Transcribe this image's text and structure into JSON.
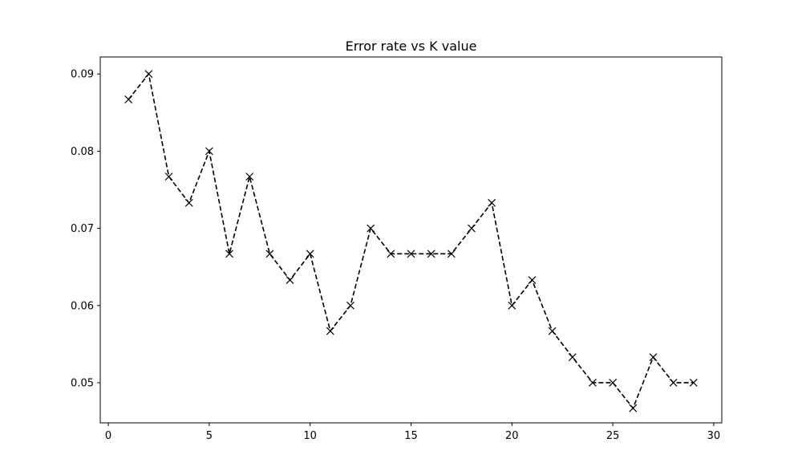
{
  "chart_data": {
    "type": "line",
    "title": "Error rate vs K value",
    "xlabel": "",
    "ylabel": "",
    "xlim": [
      -0.4,
      30.4
    ],
    "ylim": [
      0.0448,
      0.0922
    ],
    "x_ticks": [
      0,
      5,
      10,
      15,
      20,
      25,
      30
    ],
    "x_tick_labels": [
      "0",
      "5",
      "10",
      "15",
      "20",
      "25",
      "30"
    ],
    "y_ticks": [
      0.05,
      0.06,
      0.07,
      0.08,
      0.09
    ],
    "y_tick_labels": [
      "0.05",
      "0.06",
      "0.07",
      "0.08",
      "0.09"
    ],
    "grid": false,
    "series": [
      {
        "name": "error rate",
        "color": "#000000",
        "line_style": "dashed",
        "marker": "x",
        "x": [
          1,
          2,
          3,
          4,
          5,
          6,
          7,
          8,
          9,
          10,
          11,
          12,
          13,
          14,
          15,
          16,
          17,
          18,
          19,
          20,
          21,
          22,
          23,
          24,
          25,
          26,
          27,
          28,
          29
        ],
        "values": [
          0.0867,
          0.09,
          0.0767,
          0.0733,
          0.08,
          0.0667,
          0.0767,
          0.0667,
          0.0633,
          0.0667,
          0.0567,
          0.06,
          0.07,
          0.0667,
          0.0667,
          0.0667,
          0.0667,
          0.07,
          0.0733,
          0.06,
          0.0633,
          0.0567,
          0.0533,
          0.05,
          0.05,
          0.0467,
          0.0533,
          0.05,
          0.05
        ]
      }
    ]
  }
}
